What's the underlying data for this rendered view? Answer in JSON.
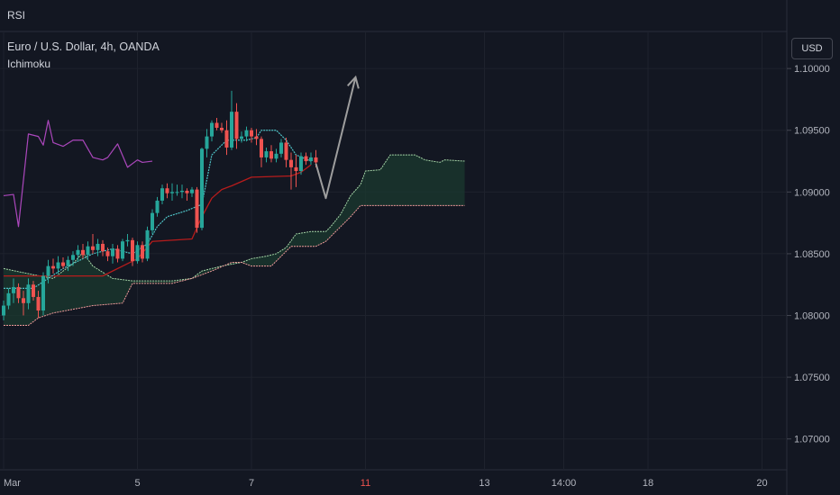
{
  "header": {
    "pane_label": "RSI",
    "symbol": "Euro / U.S. Dollar, 4h, OANDA",
    "indicator": "Ichimoku",
    "currency": "USD"
  },
  "colors": {
    "background": "#131722",
    "grid": "#1e222d",
    "axis_text": "#b2b5be",
    "up_candle": "#26a69a",
    "down_candle": "#ef5350",
    "conversion_line": "#2962ff",
    "base_line": "#b71c1c",
    "lagging_line": "#66bb6a",
    "leading_span_a": "#a5d6a7",
    "leading_span_b": "#ef9a9a",
    "cloud_fill": "#1b3a2f",
    "projection_arrow": "#9e9e9e",
    "highlight_tick": "#ef5350"
  },
  "chart_data": {
    "type": "candlestick",
    "title": "",
    "ylim": [
      1.0675,
      1.103
    ],
    "yticks": [
      "1.10000",
      "1.09500",
      "1.09000",
      "1.08500",
      "1.08000",
      "1.07500",
      "1.07000"
    ],
    "ytick_values": [
      1.1,
      1.095,
      1.09,
      1.085,
      1.08,
      1.075,
      1.07
    ],
    "xticks": [
      {
        "label": "Mar",
        "x": 0,
        "highlight": false
      },
      {
        "label": "5",
        "x": 27,
        "highlight": false
      },
      {
        "label": "7",
        "x": 50,
        "highlight": false
      },
      {
        "label": "11",
        "x": 73,
        "highlight": true
      },
      {
        "label": "13",
        "x": 97,
        "highlight": false
      },
      {
        "label": "14:00",
        "x": 113,
        "highlight": false
      },
      {
        "label": "18",
        "x": 130,
        "highlight": false
      },
      {
        "label": "20",
        "x": 153,
        "highlight": false
      }
    ],
    "candles": [
      [
        1.08,
        1.0812,
        1.0796,
        1.0808
      ],
      [
        1.0808,
        1.0822,
        1.0805,
        1.0818
      ],
      [
        1.0818,
        1.083,
        1.081,
        1.0823
      ],
      [
        1.0823,
        1.0826,
        1.081,
        1.0814
      ],
      [
        1.0814,
        1.082,
        1.08,
        1.081
      ],
      [
        1.081,
        1.083,
        1.0805,
        1.0825
      ],
      [
        1.0825,
        1.0828,
        1.0812,
        1.0815
      ],
      [
        1.0815,
        1.082,
        1.0798,
        1.0804
      ],
      [
        1.0804,
        1.0835,
        1.08,
        1.0832
      ],
      [
        1.0832,
        1.0845,
        1.0826,
        1.084
      ],
      [
        1.084,
        1.0846,
        1.0834,
        1.0838
      ],
      [
        1.0838,
        1.0848,
        1.0834,
        1.0843
      ],
      [
        1.0843,
        1.0847,
        1.0838,
        1.084
      ],
      [
        1.084,
        1.0848,
        1.0836,
        1.0845
      ],
      [
        1.0845,
        1.0852,
        1.084,
        1.0849
      ],
      [
        1.0849,
        1.0857,
        1.0844,
        1.0853
      ],
      [
        1.0853,
        1.0858,
        1.0846,
        1.0849
      ],
      [
        1.0849,
        1.086,
        1.0845,
        1.0856
      ],
      [
        1.0856,
        1.0866,
        1.085,
        1.0853
      ],
      [
        1.0853,
        1.0862,
        1.0848,
        1.0858
      ],
      [
        1.0858,
        1.0861,
        1.0848,
        1.0852
      ],
      [
        1.0852,
        1.0855,
        1.0844,
        1.0848
      ],
      [
        1.0848,
        1.0858,
        1.0842,
        1.0854
      ],
      [
        1.0854,
        1.0857,
        1.0843,
        1.0846
      ],
      [
        1.0846,
        1.0862,
        1.0844,
        1.086
      ],
      [
        1.086,
        1.0866,
        1.0856,
        1.0861
      ],
      [
        1.0861,
        1.0863,
        1.084,
        1.0844
      ],
      [
        1.0844,
        1.086,
        1.0842,
        1.0857
      ],
      [
        1.0857,
        1.086,
        1.0843,
        1.0846
      ],
      [
        1.0846,
        1.0872,
        1.0844,
        1.0869
      ],
      [
        1.0869,
        1.0886,
        1.0866,
        1.0883
      ],
      [
        1.0883,
        1.0896,
        1.088,
        1.0893
      ],
      [
        1.0893,
        1.0906,
        1.089,
        1.0903
      ],
      [
        1.0903,
        1.0907,
        1.0895,
        1.0899
      ],
      [
        1.0899,
        1.0907,
        1.0893,
        1.09
      ],
      [
        1.09,
        1.0906,
        1.0897,
        1.09
      ],
      [
        1.09,
        1.0906,
        1.0895,
        1.0901
      ],
      [
        1.0901,
        1.0903,
        1.0893,
        1.0899
      ],
      [
        1.0899,
        1.0904,
        1.0896,
        1.0902
      ],
      [
        1.0902,
        1.0904,
        1.0867,
        1.0871
      ],
      [
        1.0871,
        1.0936,
        1.0869,
        1.0935
      ],
      [
        1.0935,
        1.0951,
        1.0928,
        1.0945
      ],
      [
        1.0945,
        1.0958,
        1.0941,
        1.0956
      ],
      [
        1.0956,
        1.096,
        1.095,
        1.0952
      ],
      [
        1.0952,
        1.0956,
        1.0948,
        1.095
      ],
      [
        1.095,
        1.0958,
        1.093,
        1.0936
      ],
      [
        1.0936,
        1.0982,
        1.0934,
        1.0965
      ],
      [
        1.0965,
        1.0972,
        1.0935,
        1.0943
      ],
      [
        1.0943,
        1.0949,
        1.094,
        1.0945
      ],
      [
        1.0945,
        1.0953,
        1.0941,
        1.095
      ],
      [
        1.095,
        1.0952,
        1.094,
        1.0945
      ],
      [
        1.0945,
        1.0951,
        1.0938,
        1.0943
      ],
      [
        1.0943,
        1.0945,
        1.092,
        1.0928
      ],
      [
        1.0928,
        1.0936,
        1.0924,
        1.0933
      ],
      [
        1.0933,
        1.0938,
        1.0924,
        1.0927
      ],
      [
        1.0927,
        1.0935,
        1.0924,
        1.0931
      ],
      [
        1.0931,
        1.0943,
        1.0928,
        1.094
      ],
      [
        1.094,
        1.0944,
        1.092,
        1.0926
      ],
      [
        1.0926,
        1.0932,
        1.0902,
        1.092
      ],
      [
        1.092,
        1.093,
        1.0904,
        1.0917
      ],
      [
        1.0917,
        1.0932,
        1.0914,
        1.0929
      ],
      [
        1.0929,
        1.0932,
        1.0922,
        1.0925
      ],
      [
        1.0925,
        1.0932,
        1.0922,
        1.0928
      ],
      [
        1.0928,
        1.0934,
        1.092,
        1.0924
      ]
    ],
    "conversion_line": [
      [
        0,
        1.0822
      ],
      [
        6,
        1.0822
      ],
      [
        9,
        1.083
      ],
      [
        12,
        1.0838
      ],
      [
        18,
        1.085
      ],
      [
        22,
        1.0854
      ],
      [
        26,
        1.085
      ],
      [
        29,
        1.0858
      ],
      [
        31,
        1.0872
      ],
      [
        33,
        1.088
      ],
      [
        37,
        1.0885
      ],
      [
        40,
        1.089
      ],
      [
        42,
        1.093
      ],
      [
        45,
        1.0942
      ],
      [
        49,
        1.0942
      ],
      [
        51,
        1.0944
      ],
      [
        52,
        1.095
      ],
      [
        55,
        1.095
      ],
      [
        57,
        1.0942
      ],
      [
        59,
        1.093
      ],
      [
        62,
        1.0925
      ]
    ],
    "base_line": [
      [
        0,
        1.0832
      ],
      [
        12,
        1.0832
      ],
      [
        20,
        1.0832
      ],
      [
        24,
        1.084
      ],
      [
        27,
        1.0846
      ],
      [
        30,
        1.086
      ],
      [
        38,
        1.0862
      ],
      [
        40,
        1.088
      ],
      [
        42,
        1.0895
      ],
      [
        44,
        1.0902
      ],
      [
        46,
        1.0905
      ],
      [
        50,
        1.0912
      ],
      [
        58,
        1.0913
      ],
      [
        60,
        1.0916
      ],
      [
        62,
        1.0922
      ]
    ],
    "lagging_line": [
      [
        0,
        1.0897
      ],
      [
        2,
        1.0898
      ],
      [
        3,
        1.0872
      ],
      [
        5,
        1.0947
      ],
      [
        7,
        1.0945
      ],
      [
        8,
        1.0938
      ],
      [
        9,
        1.0958
      ],
      [
        10,
        1.094
      ],
      [
        12,
        1.0937
      ],
      [
        14,
        1.0942
      ],
      [
        16,
        1.0942
      ],
      [
        18,
        1.0928
      ],
      [
        20,
        1.0926
      ],
      [
        21,
        1.0928
      ],
      [
        23,
        1.0939
      ],
      [
        25,
        1.092
      ],
      [
        27,
        1.0926
      ],
      [
        28,
        1.0924
      ],
      [
        30,
        1.0925
      ]
    ],
    "leading_span_a": [
      [
        0,
        1.0838
      ],
      [
        6,
        1.0833
      ],
      [
        10,
        1.083
      ],
      [
        14,
        1.0842
      ],
      [
        16,
        1.0851
      ],
      [
        18,
        1.084
      ],
      [
        22,
        1.083
      ],
      [
        26,
        1.0828
      ],
      [
        34,
        1.0828
      ],
      [
        38,
        1.083
      ],
      [
        40,
        1.0836
      ],
      [
        44,
        1.084
      ],
      [
        48,
        1.0843
      ],
      [
        50,
        1.0846
      ],
      [
        53,
        1.0848
      ],
      [
        55,
        1.085
      ],
      [
        57,
        1.0855
      ],
      [
        59,
        1.0866
      ],
      [
        62,
        1.0868
      ],
      [
        65,
        1.0868
      ],
      [
        66,
        1.0872
      ],
      [
        68,
        1.0882
      ],
      [
        70,
        1.0897
      ],
      [
        72,
        1.0906
      ],
      [
        73,
        1.0917
      ],
      [
        76,
        1.0918
      ],
      [
        78,
        1.093
      ],
      [
        83,
        1.093
      ],
      [
        85,
        1.0926
      ],
      [
        88,
        1.0924
      ],
      [
        89,
        1.0926
      ],
      [
        93,
        1.0925
      ]
    ],
    "leading_span_b": [
      [
        0,
        1.0792
      ],
      [
        5,
        1.0792
      ],
      [
        7,
        1.0798
      ],
      [
        10,
        1.0802
      ],
      [
        14,
        1.0805
      ],
      [
        18,
        1.0808
      ],
      [
        24,
        1.081
      ],
      [
        26,
        1.0826
      ],
      [
        34,
        1.0826
      ],
      [
        38,
        1.083
      ],
      [
        42,
        1.0836
      ],
      [
        46,
        1.0843
      ],
      [
        48,
        1.0843
      ],
      [
        50,
        1.084
      ],
      [
        54,
        1.084
      ],
      [
        56,
        1.0848
      ],
      [
        58,
        1.0856
      ],
      [
        60,
        1.0856
      ],
      [
        63,
        1.0856
      ],
      [
        65,
        1.086
      ],
      [
        67,
        1.0868
      ],
      [
        70,
        1.088
      ],
      [
        72,
        1.0889
      ],
      [
        76,
        1.0889
      ],
      [
        93,
        1.0889
      ]
    ],
    "projection": [
      [
        63,
        1.0923
      ],
      [
        65,
        1.0895
      ],
      [
        71,
        1.0993
      ]
    ]
  }
}
